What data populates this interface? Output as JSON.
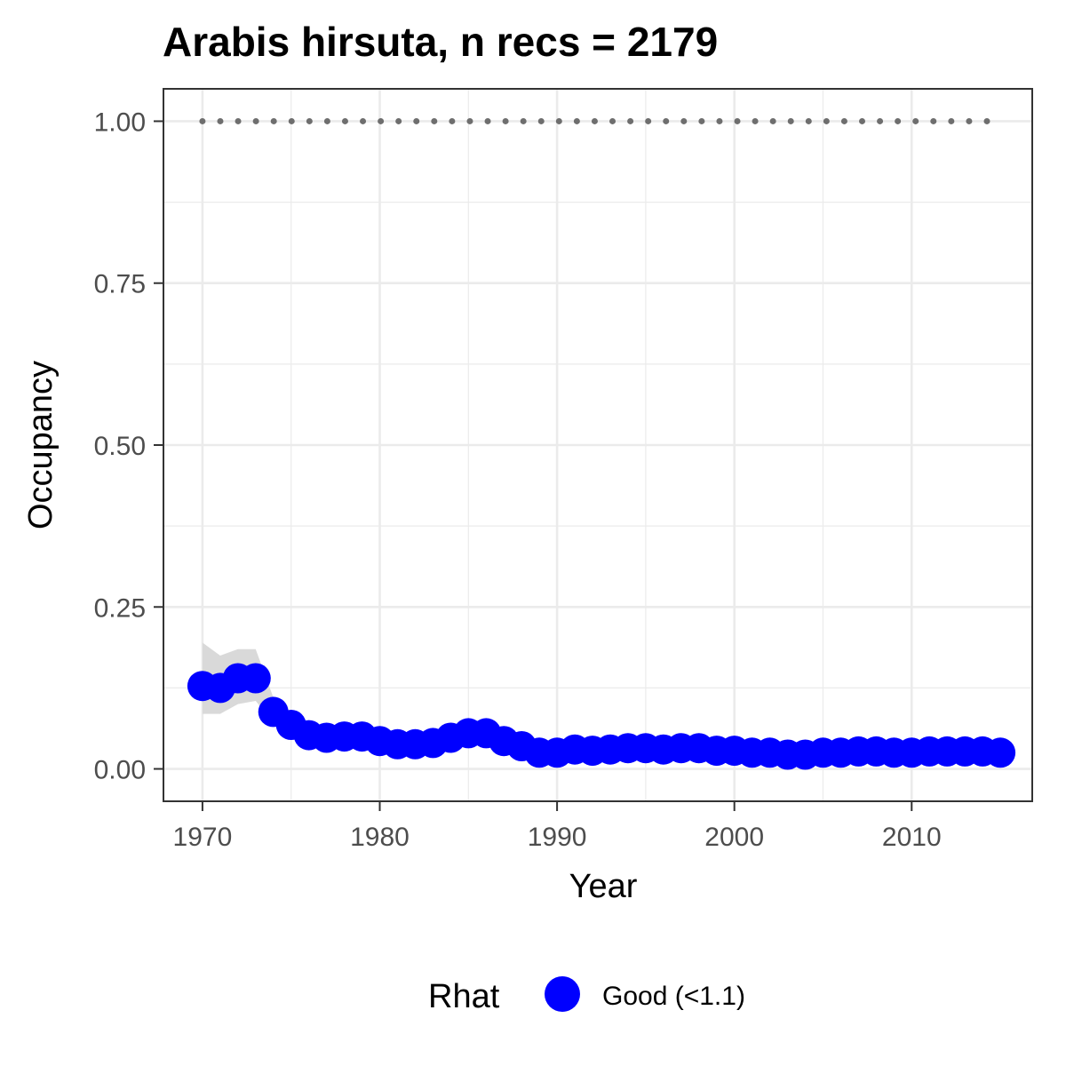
{
  "chart_data": {
    "type": "line",
    "title": "Arabis hirsuta, n recs = 2179",
    "xlabel": "Year",
    "ylabel": "Occupancy",
    "xlim": [
      1967.8,
      2016.8
    ],
    "ylim": [
      -0.05,
      1.05
    ],
    "x_ticks": [
      1970,
      1980,
      1990,
      2000,
      2010
    ],
    "x_tick_labels": [
      "1970",
      "1980",
      "1990",
      "2000",
      "2010"
    ],
    "y_ticks": [
      0,
      0.25,
      0.5,
      0.75,
      1.0
    ],
    "y_tick_labels": [
      "0.00",
      "0.25",
      "0.50",
      "0.75",
      "1.00"
    ],
    "grid": true,
    "legend": {
      "title": "Rhat",
      "position": "bottom",
      "entries": [
        {
          "label": "Good (<1.1)",
          "color": "#0000ff"
        }
      ]
    },
    "colors": {
      "points": "#0000ff",
      "ribbon": "#d9d9d9",
      "reference": "#6e6e6e",
      "grid": "#ebebeb",
      "panel_border": "#333333"
    },
    "reference_line": {
      "y": 1.0,
      "style": "dotted",
      "x": [
        1970,
        2015
      ]
    },
    "series": [
      {
        "name": "Good (<1.1)",
        "x": [
          1970,
          1971,
          1972,
          1973,
          1974,
          1975,
          1976,
          1977,
          1978,
          1979,
          1980,
          1981,
          1982,
          1983,
          1984,
          1985,
          1986,
          1987,
          1988,
          1989,
          1990,
          1991,
          1992,
          1993,
          1994,
          1995,
          1996,
          1997,
          1998,
          1999,
          2000,
          2001,
          2002,
          2003,
          2004,
          2005,
          2006,
          2007,
          2008,
          2009,
          2010,
          2011,
          2012,
          2013,
          2014,
          2015
        ],
        "y": [
          0.128,
          0.125,
          0.14,
          0.14,
          0.088,
          0.068,
          0.052,
          0.048,
          0.05,
          0.05,
          0.043,
          0.038,
          0.038,
          0.04,
          0.048,
          0.055,
          0.055,
          0.043,
          0.035,
          0.025,
          0.025,
          0.03,
          0.028,
          0.03,
          0.032,
          0.032,
          0.03,
          0.032,
          0.032,
          0.028,
          0.028,
          0.025,
          0.025,
          0.022,
          0.022,
          0.025,
          0.025,
          0.027,
          0.027,
          0.025,
          0.025,
          0.027,
          0.027,
          0.027,
          0.027,
          0.025
        ],
        "lower": [
          0.085,
          0.085,
          0.1,
          0.105,
          0.072,
          0.055,
          0.043,
          0.04,
          0.042,
          0.042,
          0.036,
          0.031,
          0.031,
          0.033,
          0.04,
          0.046,
          0.046,
          0.036,
          0.028,
          0.019,
          0.019,
          0.024,
          0.022,
          0.024,
          0.026,
          0.026,
          0.024,
          0.026,
          0.026,
          0.022,
          0.022,
          0.019,
          0.019,
          0.016,
          0.016,
          0.019,
          0.019,
          0.021,
          0.021,
          0.019,
          0.019,
          0.021,
          0.021,
          0.021,
          0.021,
          0.019
        ],
        "upper": [
          0.195,
          0.175,
          0.185,
          0.185,
          0.11,
          0.082,
          0.063,
          0.058,
          0.06,
          0.06,
          0.052,
          0.046,
          0.046,
          0.048,
          0.057,
          0.065,
          0.065,
          0.052,
          0.043,
          0.032,
          0.032,
          0.037,
          0.035,
          0.037,
          0.039,
          0.039,
          0.037,
          0.039,
          0.039,
          0.035,
          0.035,
          0.032,
          0.032,
          0.029,
          0.029,
          0.032,
          0.032,
          0.034,
          0.034,
          0.032,
          0.032,
          0.034,
          0.034,
          0.034,
          0.034,
          0.032
        ]
      }
    ]
  }
}
